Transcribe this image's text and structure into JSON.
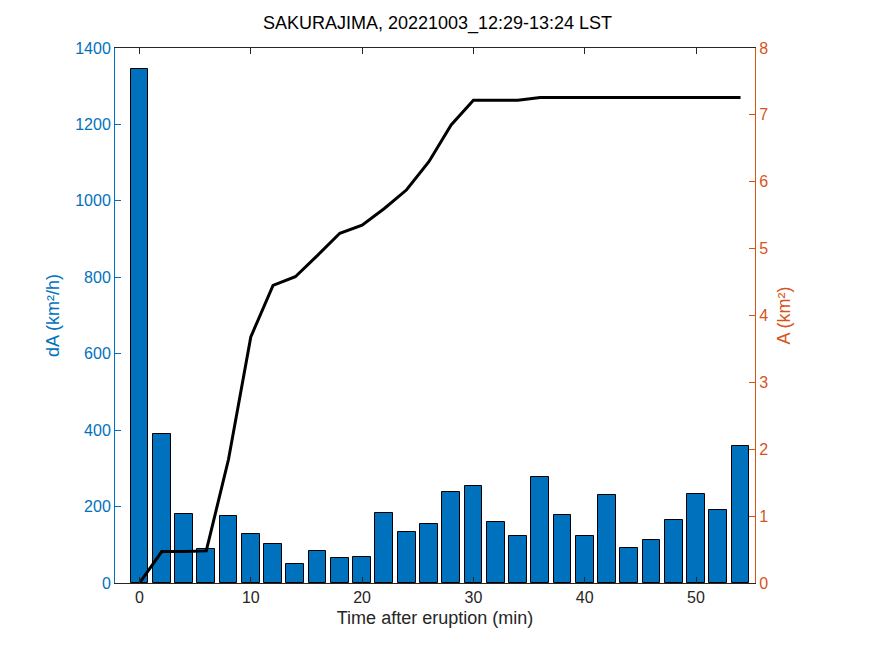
{
  "chart_data": {
    "type": "bar",
    "title": "SAKURAJIMA, 20221003_12:29-13:24 LST",
    "x_label": "Time after eruption (min)",
    "y_label": "dA (km²/h)",
    "y2_label": "A (km²)",
    "x": [
      0,
      2,
      4,
      6,
      8,
      10,
      12,
      14,
      16,
      18,
      20,
      22,
      24,
      26,
      28,
      30,
      32,
      34,
      36,
      38,
      40,
      42,
      44,
      46,
      48,
      50,
      52,
      54
    ],
    "series": [
      {
        "name": "dA",
        "type": "bar",
        "color": "#0072BD",
        "values": [
          1345,
          390,
          180,
          90,
          175,
          127,
          102,
          50,
          83,
          65,
          68,
          182,
          133,
          155,
          237,
          255,
          160,
          124,
          277,
          178,
          122,
          230,
          92,
          113,
          165,
          233,
          190,
          358
        ]
      },
      {
        "name": "A",
        "type": "line",
        "color": "#000000",
        "axis": "y2",
        "values": [
          0,
          0.47,
          0.47,
          0.48,
          1.85,
          3.68,
          4.45,
          4.58,
          4.9,
          5.23,
          5.35,
          5.6,
          5.88,
          6.3,
          6.85,
          7.22,
          7.22,
          7.22,
          7.26,
          7.26,
          7.26,
          7.26,
          7.26,
          7.26,
          7.26,
          7.26,
          7.26,
          7.26
        ]
      }
    ],
    "xlim": [
      -2.2,
      55.3
    ],
    "xticks": [
      0,
      10,
      20,
      30,
      40,
      50
    ],
    "ylim": [
      0,
      1400
    ],
    "yticks": [
      0,
      200,
      400,
      600,
      800,
      1000,
      1200,
      1400
    ],
    "y2lim": [
      0,
      8
    ],
    "y2ticks": [
      0,
      1,
      2,
      3,
      4,
      5,
      6,
      7,
      8
    ],
    "grid": false
  }
}
